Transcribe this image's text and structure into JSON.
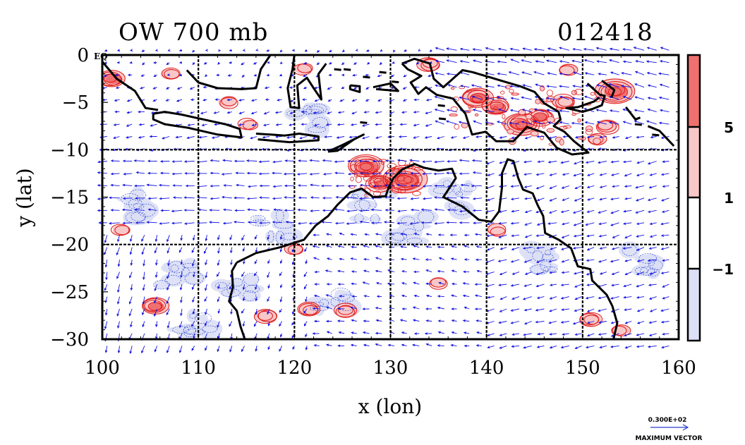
{
  "header": {
    "title": "OW 700 mb",
    "date_code": "012418",
    "map_corner_label": "EQ"
  },
  "chart_data": {
    "type": "heatmap",
    "title": "OW 700 mb",
    "subtitle": "012418",
    "xlabel": "x (lon)",
    "ylabel": "y (lat)",
    "xlim": [
      100,
      160
    ],
    "ylim": [
      -30,
      0
    ],
    "x_ticks": [
      100,
      110,
      120,
      130,
      140,
      150,
      160
    ],
    "y_ticks": [
      0,
      -5,
      -10,
      -15,
      -20,
      -25,
      -30
    ],
    "x_tick_labels": [
      "100",
      "110",
      "120",
      "130",
      "140",
      "150",
      "160"
    ],
    "y_tick_labels": [
      "0",
      "−5",
      "−10",
      "−15",
      "−20",
      "−25",
      "−30"
    ],
    "grid": "dashed every 10 degrees",
    "colorbar": {
      "levels": [
        -1,
        1,
        5
      ],
      "level_labels": [
        "−1",
        "1",
        "5"
      ],
      "colors": [
        "#dcdff5",
        "#ffffff",
        "#f8c7c7",
        "#f07070"
      ]
    },
    "vector_color": "#1010e0",
    "contour_positive_color": "#e02020",
    "contour_negative_color": "#2040d0",
    "coastline_color": "#000000",
    "positive_regions": [
      {
        "lon": 131.5,
        "lat": -13.2,
        "peak": 8
      },
      {
        "lon": 127.5,
        "lat": -11.8,
        "peak": 6
      },
      {
        "lon": 129.0,
        "lat": -13.5,
        "peak": 4
      },
      {
        "lon": 153.3,
        "lat": -3.8,
        "peak": 7
      },
      {
        "lon": 143.5,
        "lat": -7.3,
        "peak": 6
      },
      {
        "lon": 139.0,
        "lat": -4.5,
        "peak": 5
      },
      {
        "lon": 141.0,
        "lat": -5.5,
        "peak": 4
      },
      {
        "lon": 145.5,
        "lat": -6.5,
        "peak": 4
      },
      {
        "lon": 148.0,
        "lat": -5.0,
        "peak": 3
      },
      {
        "lon": 152.5,
        "lat": -7.5,
        "peak": 3
      },
      {
        "lon": 101.0,
        "lat": -2.5,
        "peak": 4
      },
      {
        "lon": 105.5,
        "lat": -26.5,
        "peak": 4
      },
      {
        "lon": 121.5,
        "lat": -26.8,
        "peak": 3
      },
      {
        "lon": 117.0,
        "lat": -27.5,
        "peak": 3
      },
      {
        "lon": 125.5,
        "lat": -27.0,
        "peak": 3
      },
      {
        "lon": 150.8,
        "lat": -28.0,
        "peak": 3
      },
      {
        "lon": 154.0,
        "lat": -29.0,
        "peak": 2
      },
      {
        "lon": 113.0,
        "lat": -5.0,
        "peak": 2
      },
      {
        "lon": 115.2,
        "lat": -7.4,
        "peak": 2
      },
      {
        "lon": 134.0,
        "lat": -1.0,
        "peak": 3
      },
      {
        "lon": 121.0,
        "lat": -1.5,
        "peak": 2
      },
      {
        "lon": 120.0,
        "lat": -20.5,
        "peak": 2
      },
      {
        "lon": 141.0,
        "lat": -18.5,
        "peak": 2
      },
      {
        "lon": 148.5,
        "lat": -1.5,
        "peak": 2
      },
      {
        "lon": 102.0,
        "lat": -18.5,
        "peak": 2
      },
      {
        "lon": 135.0,
        "lat": -24.0,
        "peak": 2
      },
      {
        "lon": 151.5,
        "lat": -9.0,
        "peak": 2
      },
      {
        "lon": 107.0,
        "lat": -2.0,
        "peak": 2
      }
    ],
    "negative_regions": [
      {
        "lon": 108.0,
        "lat": -23.0
      },
      {
        "lon": 114.0,
        "lat": -25.0
      },
      {
        "lon": 118.0,
        "lat": -18.0
      },
      {
        "lon": 124.0,
        "lat": -25.5
      },
      {
        "lon": 132.0,
        "lat": -18.5
      },
      {
        "lon": 128.0,
        "lat": -16.0
      },
      {
        "lon": 104.0,
        "lat": -16.0
      },
      {
        "lon": 145.0,
        "lat": -22.0
      },
      {
        "lon": 121.0,
        "lat": -7.0
      },
      {
        "lon": 137.0,
        "lat": -15.0
      },
      {
        "lon": 110.0,
        "lat": -28.0
      },
      {
        "lon": 156.0,
        "lat": -22.0
      }
    ]
  },
  "maximum_vector": {
    "value_label": "0.300E+02",
    "caption": "MAXIMUM VECTOR"
  }
}
